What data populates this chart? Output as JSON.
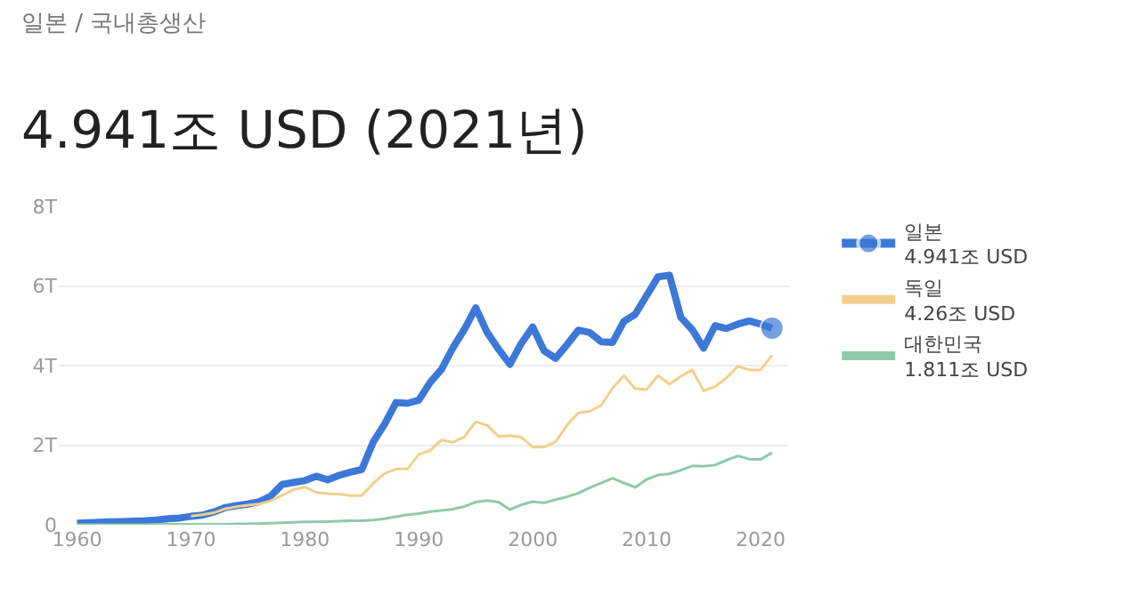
{
  "chart_data": {
    "type": "line",
    "subtitle": "일본 / 국내총생산",
    "title": "4.941조 USD (2021년)",
    "x": [
      1960,
      1961,
      1962,
      1963,
      1964,
      1965,
      1966,
      1967,
      1968,
      1969,
      1970,
      1971,
      1972,
      1973,
      1974,
      1975,
      1976,
      1977,
      1978,
      1979,
      1980,
      1981,
      1982,
      1983,
      1984,
      1985,
      1986,
      1987,
      1988,
      1989,
      1990,
      1991,
      1992,
      1993,
      1994,
      1995,
      1996,
      1997,
      1998,
      1999,
      2000,
      2001,
      2002,
      2003,
      2004,
      2005,
      2006,
      2007,
      2008,
      2009,
      2010,
      2011,
      2012,
      2013,
      2014,
      2015,
      2016,
      2017,
      2018,
      2019,
      2020,
      2021
    ],
    "series": [
      {
        "name": "일본",
        "color": "#3c78d8",
        "values": [
          0.04,
          0.05,
          0.06,
          0.07,
          0.08,
          0.09,
          0.1,
          0.12,
          0.15,
          0.17,
          0.21,
          0.24,
          0.32,
          0.43,
          0.48,
          0.52,
          0.58,
          0.72,
          1.01,
          1.06,
          1.11,
          1.22,
          1.13,
          1.24,
          1.32,
          1.39,
          2.08,
          2.53,
          3.07,
          3.05,
          3.13,
          3.58,
          3.91,
          4.45,
          4.91,
          5.45,
          4.83,
          4.41,
          4.03,
          4.56,
          4.97,
          4.37,
          4.18,
          4.52,
          4.89,
          4.83,
          4.6,
          4.58,
          5.11,
          5.29,
          5.76,
          6.23,
          6.27,
          5.21,
          4.9,
          4.44,
          5.0,
          4.93,
          5.04,
          5.12,
          5.04,
          4.94
        ]
      },
      {
        "name": "독일",
        "color": "#f2cf8c",
        "values": [
          null,
          null,
          null,
          null,
          null,
          null,
          null,
          null,
          null,
          null,
          0.22,
          0.25,
          0.3,
          0.4,
          0.45,
          0.49,
          0.52,
          0.6,
          0.74,
          0.88,
          0.95,
          0.81,
          0.78,
          0.77,
          0.73,
          0.73,
          1.04,
          1.29,
          1.4,
          1.4,
          1.77,
          1.87,
          2.13,
          2.07,
          2.21,
          2.59,
          2.5,
          2.22,
          2.24,
          2.2,
          1.95,
          1.95,
          2.08,
          2.5,
          2.81,
          2.85,
          3.0,
          3.43,
          3.75,
          3.42,
          3.4,
          3.75,
          3.53,
          3.73,
          3.89,
          3.36,
          3.47,
          3.69,
          3.98,
          3.89,
          3.89,
          4.26
        ]
      },
      {
        "name": "대한민국",
        "color": "#8fcaa6",
        "values": [
          0.0,
          0.0,
          0.0,
          0.0,
          0.0,
          0.0,
          0.0,
          0.01,
          0.01,
          0.01,
          0.01,
          0.01,
          0.01,
          0.01,
          0.02,
          0.02,
          0.03,
          0.04,
          0.05,
          0.06,
          0.07,
          0.07,
          0.08,
          0.09,
          0.1,
          0.1,
          0.12,
          0.15,
          0.2,
          0.25,
          0.28,
          0.33,
          0.36,
          0.39,
          0.46,
          0.57,
          0.61,
          0.57,
          0.38,
          0.5,
          0.58,
          0.55,
          0.63,
          0.7,
          0.79,
          0.93,
          1.05,
          1.17,
          1.05,
          0.94,
          1.14,
          1.25,
          1.28,
          1.37,
          1.48,
          1.47,
          1.5,
          1.62,
          1.73,
          1.65,
          1.64,
          1.81
        ]
      }
    ],
    "annotations": [
      "4.941조 USD",
      "4.26조 USD",
      "1.811조 USD"
    ],
    "xlim": [
      1958.4,
      2022.5
    ],
    "xticks": [
      1960,
      1970,
      1980,
      1990,
      2000,
      2010,
      2020
    ],
    "ylim": [
      0,
      8
    ],
    "yticks": [
      0,
      {
        "value": 2,
        "label": "2T"
      },
      {
        "value": 4,
        "label": "4T"
      },
      {
        "value": 6,
        "label": "6T"
      },
      {
        "value": 8,
        "label": "8T"
      }
    ],
    "grid": "y",
    "legend": "right"
  }
}
